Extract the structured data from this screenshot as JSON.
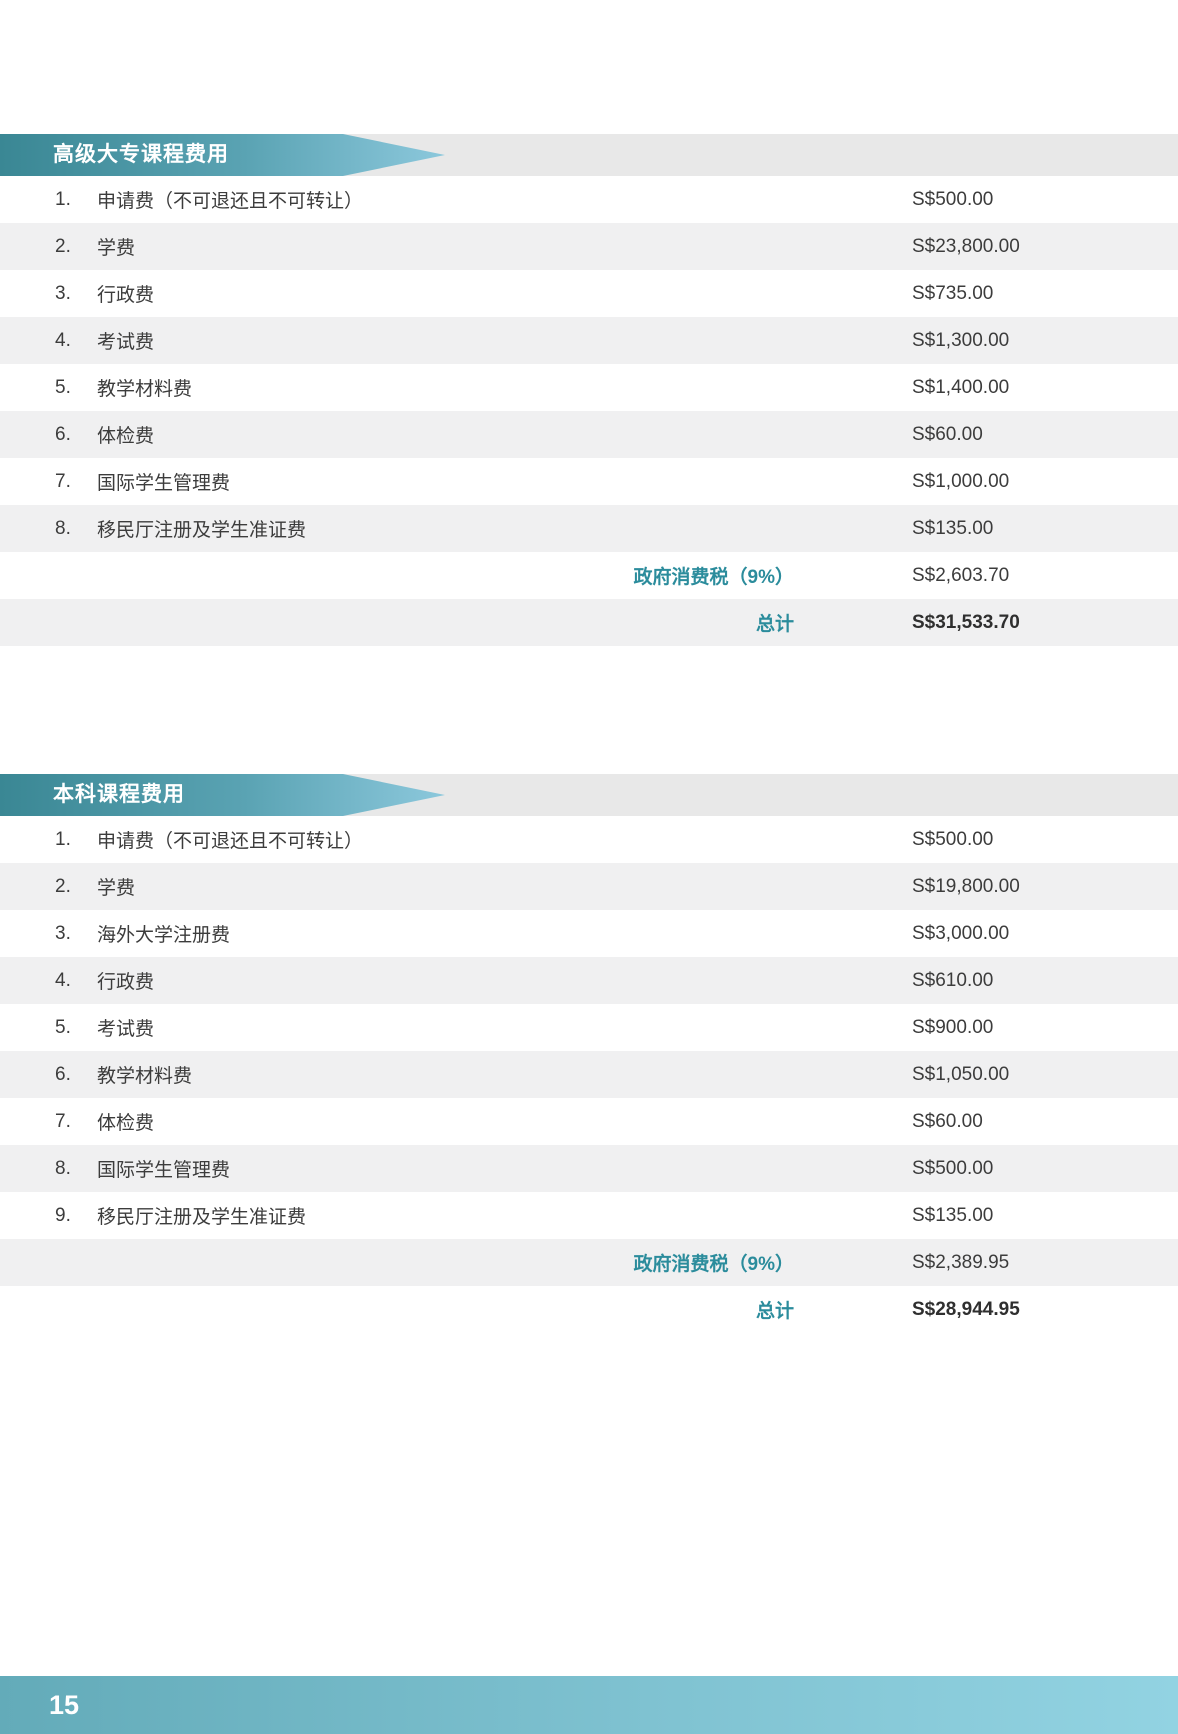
{
  "colors": {
    "banner_gradient_start": "#3a8794",
    "banner_gradient_end": "#8cc8dc",
    "banner_track_gray": "#e8e8e8",
    "row_stripe_gray": "#f0f0f1",
    "teal_text": "#2b8c9c",
    "body_text": "#3c3c3c",
    "footer_gradient_start": "#63abb9",
    "footer_gradient_end": "#92d3e2"
  },
  "tables": [
    {
      "title": "高级大专课程费用",
      "rows": [
        {
          "num": "1.",
          "label": "申请费（不可退还且不可转让）",
          "value": "S$500.00"
        },
        {
          "num": "2.",
          "label": "学费",
          "value": "S$23,800.00"
        },
        {
          "num": "3.",
          "label": "行政费",
          "value": "S$735.00"
        },
        {
          "num": "4.",
          "label": "考试费",
          "value": "S$1,300.00"
        },
        {
          "num": "5.",
          "label": "教学材料费",
          "value": "S$1,400.00"
        },
        {
          "num": "6.",
          "label": "体检费",
          "value": "S$60.00"
        },
        {
          "num": "7.",
          "label": "国际学生管理费",
          "value": "S$1,000.00"
        },
        {
          "num": "8.",
          "label": "移民厅注册及学生准证费",
          "value": "S$135.00"
        }
      ],
      "gst_label": "政府消费税（9%）",
      "gst_value": "S$2,603.70",
      "total_label": "总计",
      "total_value": "S$31,533.70"
    },
    {
      "title": "本科课程费用",
      "rows": [
        {
          "num": "1.",
          "label": "申请费（不可退还且不可转让）",
          "value": "S$500.00"
        },
        {
          "num": "2.",
          "label": "学费",
          "value": "S$19,800.00"
        },
        {
          "num": "3.",
          "label": "海外大学注册费",
          "value": "S$3,000.00"
        },
        {
          "num": "4.",
          "label": "行政费",
          "value": "S$610.00"
        },
        {
          "num": "5.",
          "label": "考试费",
          "value": "S$900.00"
        },
        {
          "num": "6.",
          "label": "教学材料费",
          "value": "S$1,050.00"
        },
        {
          "num": "7.",
          "label": "体检费",
          "value": "S$60.00"
        },
        {
          "num": "8.",
          "label": "国际学生管理费",
          "value": "S$500.00"
        },
        {
          "num": "9.",
          "label": "移民厅注册及学生准证费",
          "value": "S$135.00"
        }
      ],
      "gst_label": "政府消费税（9%）",
      "gst_value": "S$2,389.95",
      "total_label": "总计",
      "total_value": "S$28,944.95"
    }
  ],
  "footer": {
    "page_number": "15"
  }
}
